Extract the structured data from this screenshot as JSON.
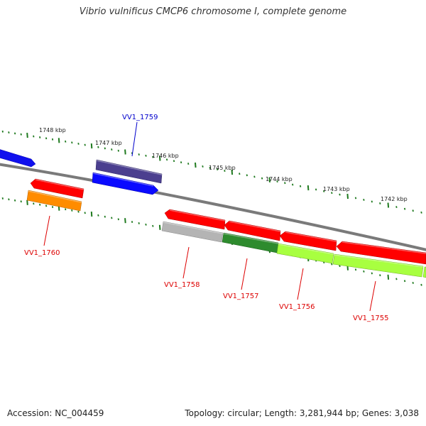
{
  "title": "Vibrio vulnificus CMCP6 chromosome I, complete genome",
  "accession_text": "Accession: NC_004459",
  "summary_text": "Topology: circular; Length: 3,281,944 bp; Genes: 3,038",
  "scale_labels": [
    "1748 kbp",
    "1747 kbp",
    "1746 kbp",
    "1745 kbp",
    "1744 kbp",
    "1743 kbp",
    "1742 kbp"
  ],
  "colors": {
    "backbone": "#8a8a8a",
    "ruler": "#1f7a1f",
    "label_red": "#dd0000",
    "label_blue": "#0000cc",
    "red": "#ff0000",
    "orange": "#ff8c00",
    "blue": "#0000ff",
    "navy": "#4b3f8f",
    "gray": "#b0b0b0",
    "dark_green": "#2e8b2e",
    "light_green": "#a8ff40"
  },
  "genes": [
    {
      "id": "VV1_1760",
      "label": "VV1_1760",
      "label_color": "label_red"
    },
    {
      "id": "VV1_1759",
      "label": "VV1_1759",
      "label_color": "label_blue"
    },
    {
      "id": "VV1_1758",
      "label": "VV1_1758",
      "label_color": "label_red"
    },
    {
      "id": "VV1_1757",
      "label": "VV1_1757",
      "label_color": "label_red"
    },
    {
      "id": "VV1_1756",
      "label": "VV1_1756",
      "label_color": "label_red"
    },
    {
      "id": "VV1_1755",
      "label": "VV1_1755",
      "label_color": "label_red"
    }
  ]
}
